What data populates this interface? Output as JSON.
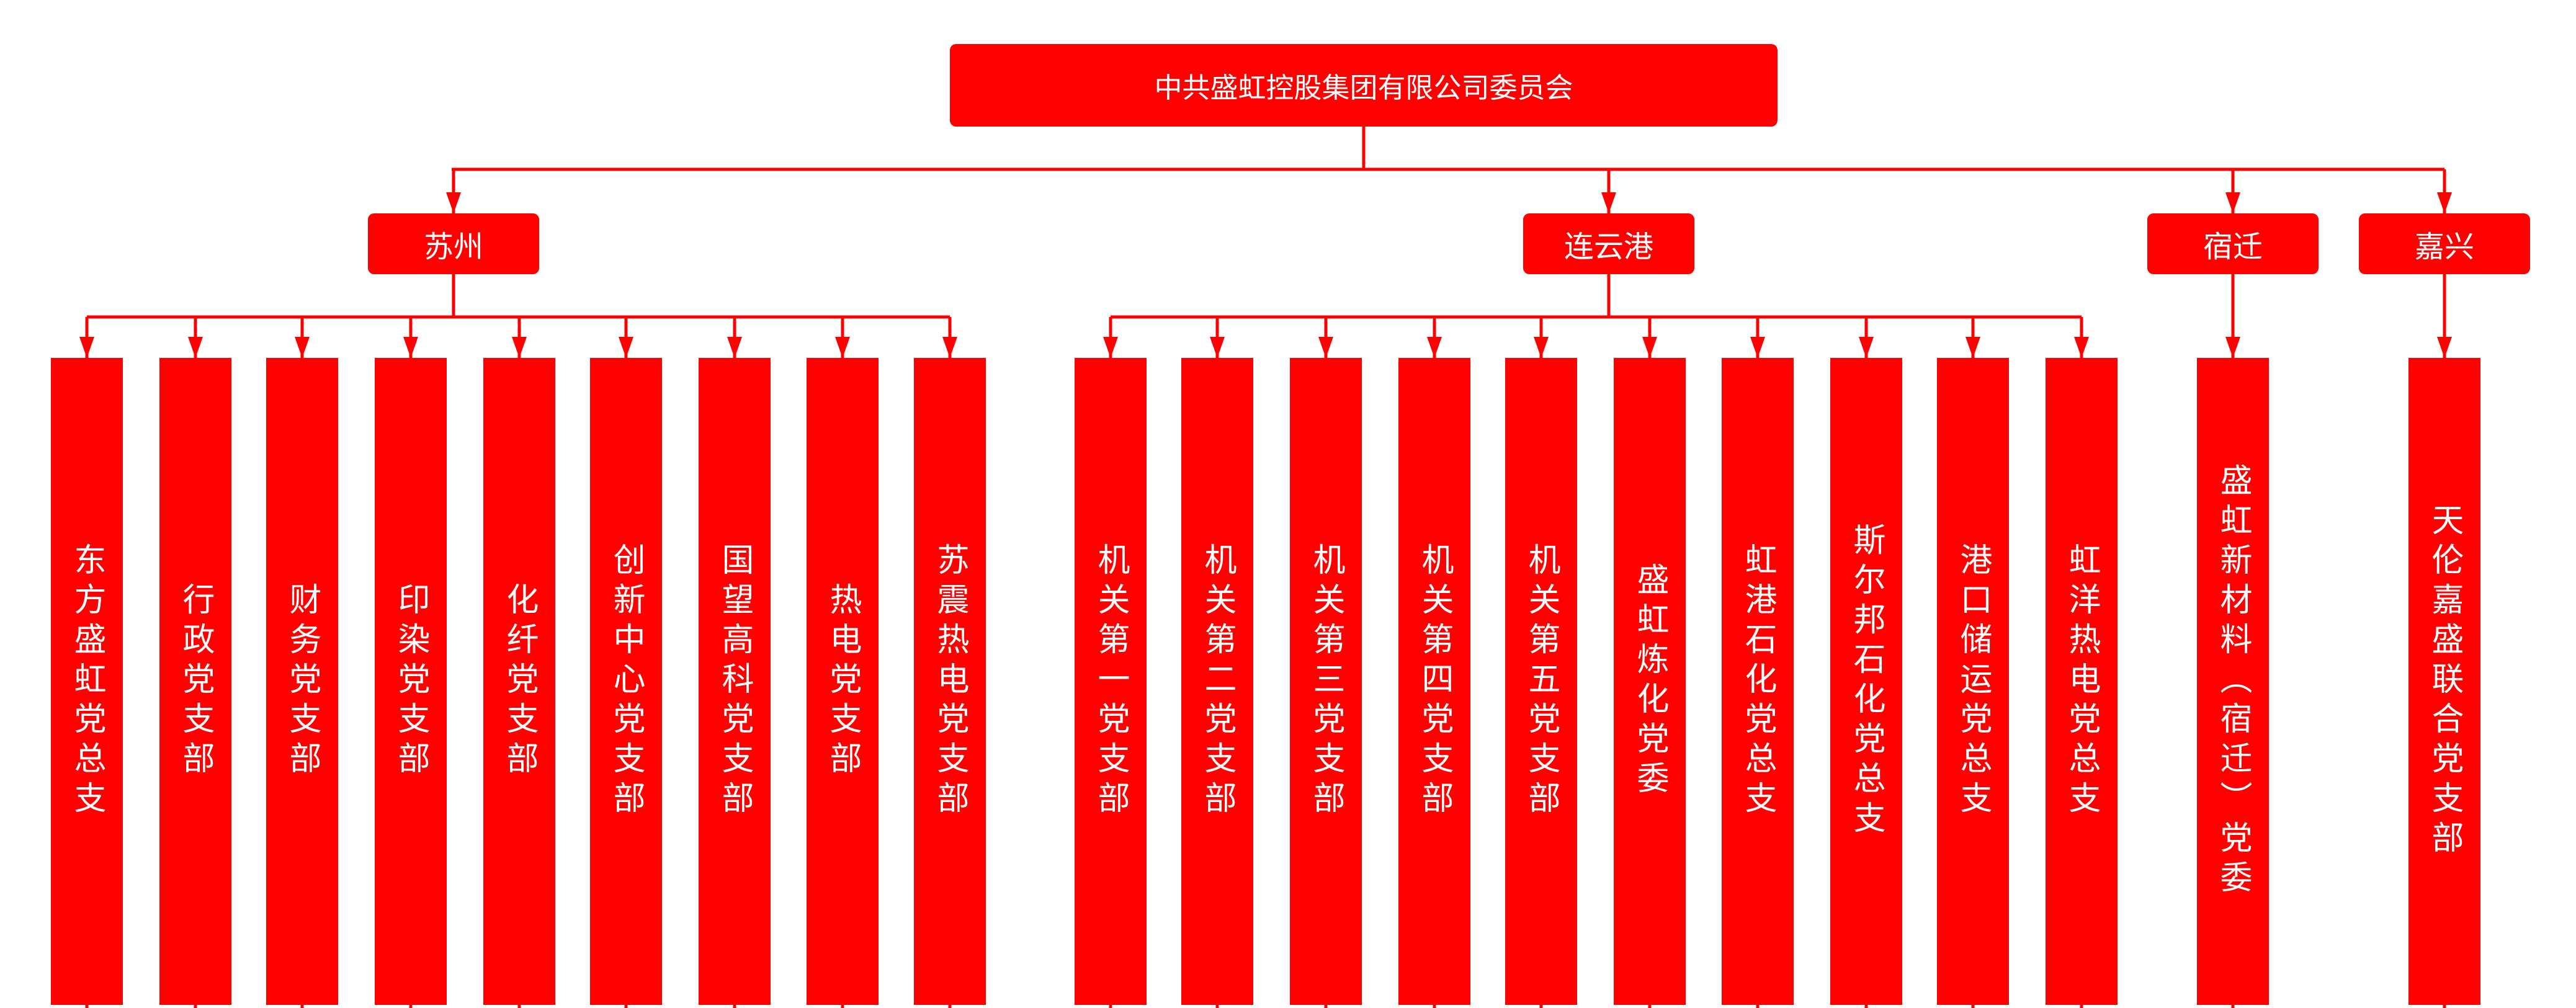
{
  "colors": {
    "node": "#ff0000",
    "text": "#ffffff",
    "line": "#ff0000"
  },
  "root": {
    "label": "中共盛虹控股集团有限公司委员会"
  },
  "regions": [
    {
      "label": "苏州",
      "children": [
        "东方盛虹党总支",
        "行政党支部",
        "财务党支部",
        "印染党支部",
        "化纤党支部",
        "创新中心党支部",
        "国望高科党支部",
        "热电党支部",
        "苏震热电党支部"
      ]
    },
    {
      "label": "连云港",
      "children": [
        "机关第一党支部",
        "机关第二党支部",
        "机关第三党支部",
        "机关第四党支部",
        "机关第五党支部",
        "盛虹炼化党委",
        "虹港石化党总支",
        "斯尔邦石化党总支",
        "港口储运党总支",
        "虹洋热电党总支"
      ]
    },
    {
      "label": "宿迁",
      "children": [
        "盛虹新材料（宿迁）党委"
      ]
    },
    {
      "label": "嘉兴",
      "children": [
        "天伦嘉盛联合党支部"
      ]
    }
  ]
}
